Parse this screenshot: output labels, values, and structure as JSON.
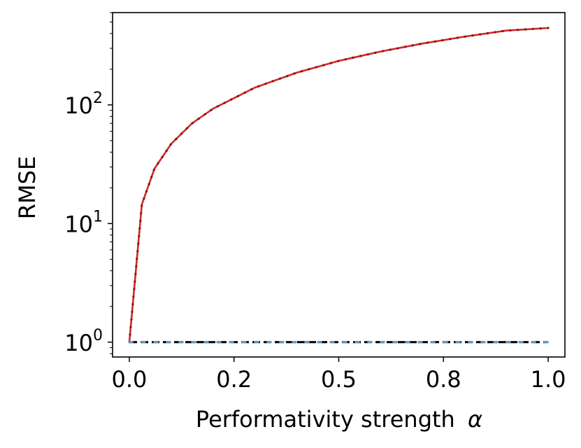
{
  "chart_data": {
    "type": "line",
    "xlabel": "Performativity strength",
    "xlabel_symbol": "α",
    "ylabel": "RMSE",
    "yscale": "log",
    "xlim": [
      -0.04,
      1.04
    ],
    "ylim": [
      0.75,
      600
    ],
    "x_ticks": [
      0.0,
      0.25,
      0.5,
      0.75,
      1.0
    ],
    "x_tick_labels": [
      "0.0",
      "0.2",
      "0.5",
      "0.8",
      "1.0"
    ],
    "y_ticks": [
      {
        "value": 1,
        "base": "10",
        "exp": "0"
      },
      {
        "value": 10,
        "base": "10",
        "exp": "1"
      },
      {
        "value": 100,
        "base": "10",
        "exp": "2"
      }
    ],
    "grid": false,
    "series": [
      {
        "color": "#d62728",
        "style": "solid-dotted-markers",
        "x": [
          0.0,
          0.03,
          0.06,
          0.1,
          0.15,
          0.2,
          0.3,
          0.4,
          0.5,
          0.6,
          0.7,
          0.8,
          0.9,
          1.0
        ],
        "y": [
          1.0,
          14.5,
          29,
          47,
          70,
          93,
          140,
          187,
          235,
          282,
          329,
          376,
          423,
          445
        ]
      },
      {
        "color": "#000000",
        "style": "dashed",
        "x": [
          0.0,
          1.0
        ],
        "y": [
          1.0,
          1.0
        ]
      },
      {
        "color": "#5b9bc9",
        "style": "dotted",
        "x": [
          0.0,
          1.0
        ],
        "y": [
          1.0,
          1.0
        ]
      }
    ]
  }
}
